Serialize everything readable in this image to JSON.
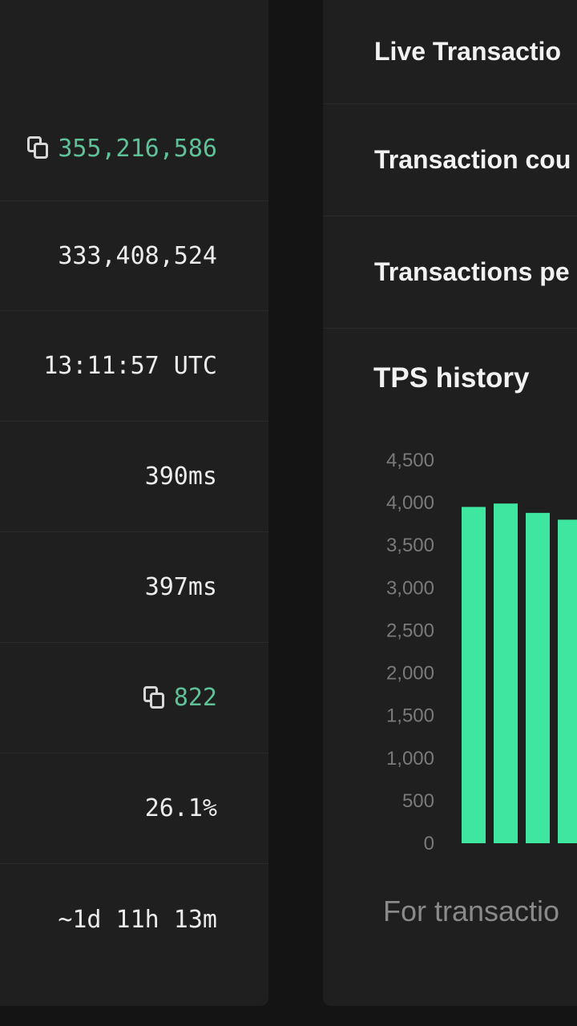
{
  "left_panel": {
    "rows": [
      {
        "value": "355,216,586",
        "copyable": true,
        "highlight": true
      },
      {
        "value": "333,408,524",
        "copyable": false,
        "highlight": false
      },
      {
        "value": "13:11:57 UTC",
        "copyable": false,
        "highlight": false
      },
      {
        "value": "390ms",
        "copyable": false,
        "highlight": false
      },
      {
        "value": "397ms",
        "copyable": false,
        "highlight": false
      },
      {
        "value": "822",
        "copyable": true,
        "highlight": true
      },
      {
        "value": "26.1%",
        "copyable": false,
        "highlight": false
      },
      {
        "value": "~1d 11h 13m",
        "copyable": false,
        "highlight": false
      }
    ]
  },
  "right_panel": {
    "title": "Live Transactio",
    "rows": [
      {
        "label": "Transaction cou"
      },
      {
        "label": "Transactions pe"
      }
    ],
    "chart_title": "TPS history",
    "footnote": "For transactio"
  },
  "chart_data": {
    "type": "bar",
    "title": "TPS history",
    "xlabel": "",
    "ylabel": "",
    "ylim": [
      0,
      4500
    ],
    "yticks": [
      "0",
      "500",
      "1,000",
      "1,500",
      "2,000",
      "2,500",
      "3,000",
      "3,500",
      "4,000",
      "4,500"
    ],
    "values": [
      3950,
      3990,
      3880,
      3800
    ],
    "bar_color": "#3ee6a0"
  },
  "colors": {
    "background": "#141414",
    "card": "#1f1f1f",
    "accent_green": "#5fc197"
  }
}
